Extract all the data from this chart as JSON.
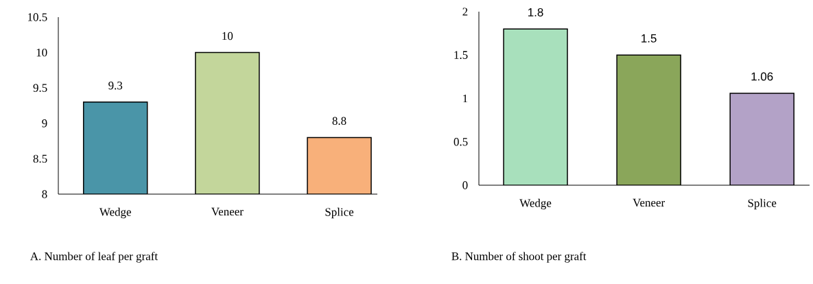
{
  "chart_data": [
    {
      "type": "bar",
      "title": "A.  Number of leaf per graft",
      "categories": [
        "Wedge",
        "Veneer",
        "Splice"
      ],
      "values": [
        9.3,
        10,
        8.8
      ],
      "colors": [
        "#4a95a8",
        "#c3d69b",
        "#f8b07a"
      ],
      "ylim": [
        8,
        10.5
      ],
      "yticks": [
        8,
        8.5,
        9,
        9.5,
        10,
        10.5
      ],
      "data_labels": true,
      "grid": false
    },
    {
      "type": "bar",
      "title": "B.  Number of shoot per graft",
      "categories": [
        "Wedge",
        "Veneer",
        "Splice"
      ],
      "values": [
        1.8,
        1.5,
        1.06
      ],
      "colors": [
        "#a8e0bc",
        "#8aa65a",
        "#b3a2c7"
      ],
      "ylim": [
        0,
        2
      ],
      "yticks": [
        0,
        0.5,
        1,
        1.5,
        2
      ],
      "data_labels": true,
      "grid": false
    }
  ]
}
